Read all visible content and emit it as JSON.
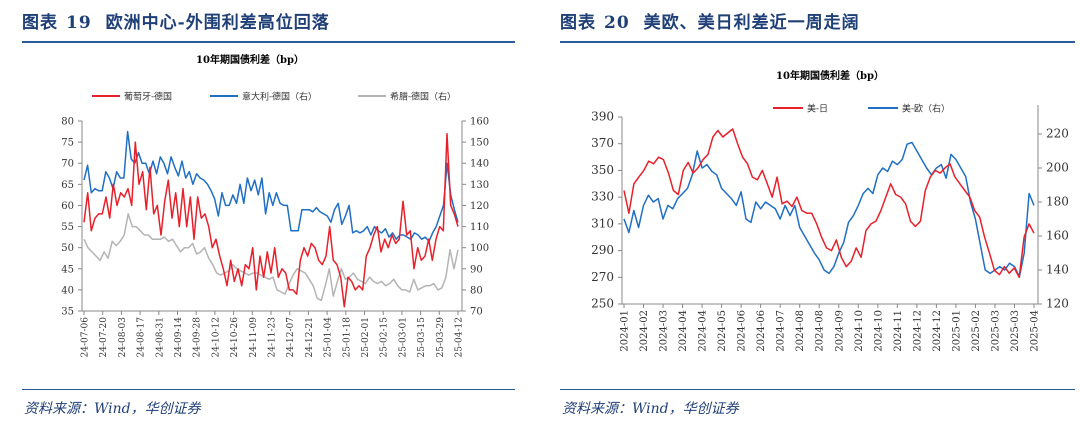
{
  "figures": [
    {
      "label": "图表",
      "number": "19",
      "title": "欧洲中心-外围利差高位回落",
      "source": "资料来源：Wind，华创证券"
    },
    {
      "label": "图表",
      "number": "20",
      "title": "美欧、美日利差近一周走阔",
      "source": "资料来源：Wind，华创证券"
    }
  ],
  "chart_data": [
    {
      "type": "line",
      "title": "10年期国债利差（bp）",
      "legend_position": "top",
      "x_tick_labels": [
        "24-07-06",
        "24-07-20",
        "24-08-03",
        "24-08-17",
        "24-08-31",
        "24-09-14",
        "24-09-28",
        "24-10-12",
        "24-10-26",
        "24-11-09",
        "24-11-23",
        "24-12-07",
        "24-12-21",
        "25-01-04",
        "25-01-18",
        "25-02-01",
        "25-02-15",
        "25-03-01",
        "25-03-15",
        "25-03-29",
        "25-04-12"
      ],
      "ylim_left": [
        35,
        80
      ],
      "yticks_left": [
        35,
        40,
        45,
        50,
        55,
        60,
        65,
        70,
        75,
        80
      ],
      "ylim_right": [
        70,
        160
      ],
      "yticks_right": [
        70,
        80,
        90,
        100,
        110,
        120,
        130,
        140,
        150,
        160
      ],
      "grid": false,
      "series": [
        {
          "name": "葡萄牙-德国",
          "axis": "left",
          "color": "#e8202a",
          "values": [
            56,
            63,
            54,
            57,
            58,
            58,
            62,
            57,
            65,
            60,
            63,
            62,
            64,
            60,
            75,
            65,
            68,
            59,
            69,
            58,
            60,
            53,
            61,
            66,
            57,
            63,
            55,
            64,
            55,
            62,
            52,
            62,
            57,
            58,
            55,
            50,
            52,
            48,
            45,
            41,
            47,
            42,
            45,
            41,
            46,
            45,
            50,
            40,
            48,
            43,
            49,
            44,
            50,
            43,
            45,
            44,
            40,
            40,
            39,
            47,
            50,
            48,
            51,
            50,
            47,
            46,
            48,
            55,
            47,
            46,
            43,
            36,
            43,
            42,
            40,
            41,
            40,
            48,
            50,
            53,
            55,
            49,
            52,
            50,
            53,
            51,
            52,
            61,
            53,
            54,
            45,
            50,
            47,
            48,
            52,
            47,
            52,
            55,
            54,
            77,
            60,
            58,
            55
          ]
        },
        {
          "name": "意大利-德国（右）",
          "axis": "right",
          "color": "#1f6fc5",
          "values": [
            132,
            139,
            126,
            128,
            127,
            127,
            136,
            133,
            128,
            136,
            133,
            133,
            155,
            142,
            140,
            145,
            140,
            140,
            135,
            141,
            135,
            143,
            140,
            135,
            143,
            138,
            134,
            141,
            133,
            136,
            130,
            135,
            133,
            132,
            130,
            127,
            123,
            115,
            126,
            120,
            120,
            125,
            121,
            130,
            121,
            133,
            127,
            132,
            125,
            133,
            116,
            126,
            120,
            126,
            121,
            120,
            120,
            108,
            108,
            108,
            118,
            118,
            118,
            117,
            119,
            117,
            116,
            115,
            112,
            118,
            121,
            111,
            115,
            120,
            107,
            108,
            107,
            108,
            110,
            106,
            110,
            108,
            107,
            109,
            105,
            107,
            104,
            106,
            106,
            105,
            104,
            107,
            106,
            104,
            105,
            103,
            107,
            110,
            115,
            120,
            140,
            125,
            118,
            112
          ]
        },
        {
          "name": "希腊-德国（右）",
          "axis": "right",
          "color": "#b4b4b4",
          "values": [
            104,
            100,
            98,
            96,
            94,
            98,
            95,
            103,
            101,
            103,
            106,
            116,
            110,
            110,
            108,
            106,
            106,
            104,
            104,
            104,
            105,
            103,
            104,
            101,
            98,
            100,
            100,
            102,
            97,
            98,
            100,
            95,
            92,
            88,
            87,
            88,
            89,
            92,
            90,
            89,
            88,
            87,
            88,
            88,
            87,
            86,
            85,
            86,
            80,
            79,
            78,
            83,
            87,
            90,
            89,
            88,
            85,
            82,
            76,
            75,
            82,
            90,
            77,
            84,
            90,
            85,
            86,
            88,
            85,
            84,
            83,
            86,
            84,
            83,
            84,
            82,
            83,
            85,
            82,
            80,
            80,
            79,
            85,
            80,
            81,
            82,
            82,
            83,
            80,
            81,
            86,
            99,
            90,
            99
          ]
        }
      ]
    },
    {
      "type": "line",
      "title": "10年期国债利差（bp）",
      "legend_position": "top",
      "x_tick_labels": [
        "2024-01",
        "2024-02",
        "2024-03",
        "2024-04",
        "2024-04",
        "2024-05",
        "2024-06",
        "2024-06",
        "2024-07",
        "2024-08",
        "2024-08",
        "2024-09",
        "2024-10",
        "2024-10",
        "2024-11",
        "2024-12",
        "2024-12",
        "2025-01",
        "2025-02",
        "2025-03",
        "2025-03",
        "2025-04"
      ],
      "ylim_left": [
        250,
        390
      ],
      "yticks_left": [
        250,
        270,
        290,
        310,
        330,
        350,
        370,
        390
      ],
      "ylim_right": [
        120,
        230
      ],
      "yticks_right": [
        120,
        140,
        160,
        180,
        200,
        220
      ],
      "grid": false,
      "series": [
        {
          "name": "美-日",
          "axis": "left",
          "color": "#e8202a",
          "values": [
            335,
            318,
            340,
            345,
            350,
            357,
            355,
            360,
            358,
            348,
            335,
            332,
            350,
            356,
            348,
            352,
            358,
            362,
            375,
            380,
            375,
            378,
            381,
            370,
            360,
            355,
            345,
            343,
            350,
            340,
            330,
            345,
            325,
            327,
            323,
            330,
            320,
            318,
            318,
            310,
            300,
            292,
            290,
            298,
            285,
            278,
            282,
            292,
            285,
            305,
            310,
            312,
            320,
            330,
            340,
            332,
            330,
            325,
            312,
            308,
            312,
            335,
            345,
            350,
            348,
            352,
            355,
            345,
            340,
            335,
            330,
            320,
            315,
            300,
            288,
            275,
            272,
            278,
            273,
            277,
            270,
            300,
            310,
            303
          ]
        },
        {
          "name": "美-欧（右）",
          "axis": "right",
          "color": "#1f6fc5",
          "values": [
            170,
            162,
            175,
            165,
            178,
            184,
            180,
            182,
            170,
            178,
            176,
            182,
            185,
            188,
            196,
            210,
            200,
            202,
            198,
            196,
            188,
            185,
            182,
            178,
            186,
            170,
            168,
            180,
            176,
            180,
            178,
            176,
            170,
            178,
            172,
            178,
            165,
            160,
            155,
            150,
            146,
            140,
            138,
            142,
            150,
            156,
            168,
            172,
            178,
            185,
            188,
            185,
            196,
            200,
            198,
            204,
            202,
            205,
            214,
            215,
            210,
            205,
            200,
            196,
            200,
            202,
            194,
            208,
            205,
            200,
            195,
            180,
            170,
            155,
            140,
            138,
            140,
            142,
            140,
            144,
            142,
            136,
            150,
            185,
            178
          ]
        }
      ]
    }
  ]
}
